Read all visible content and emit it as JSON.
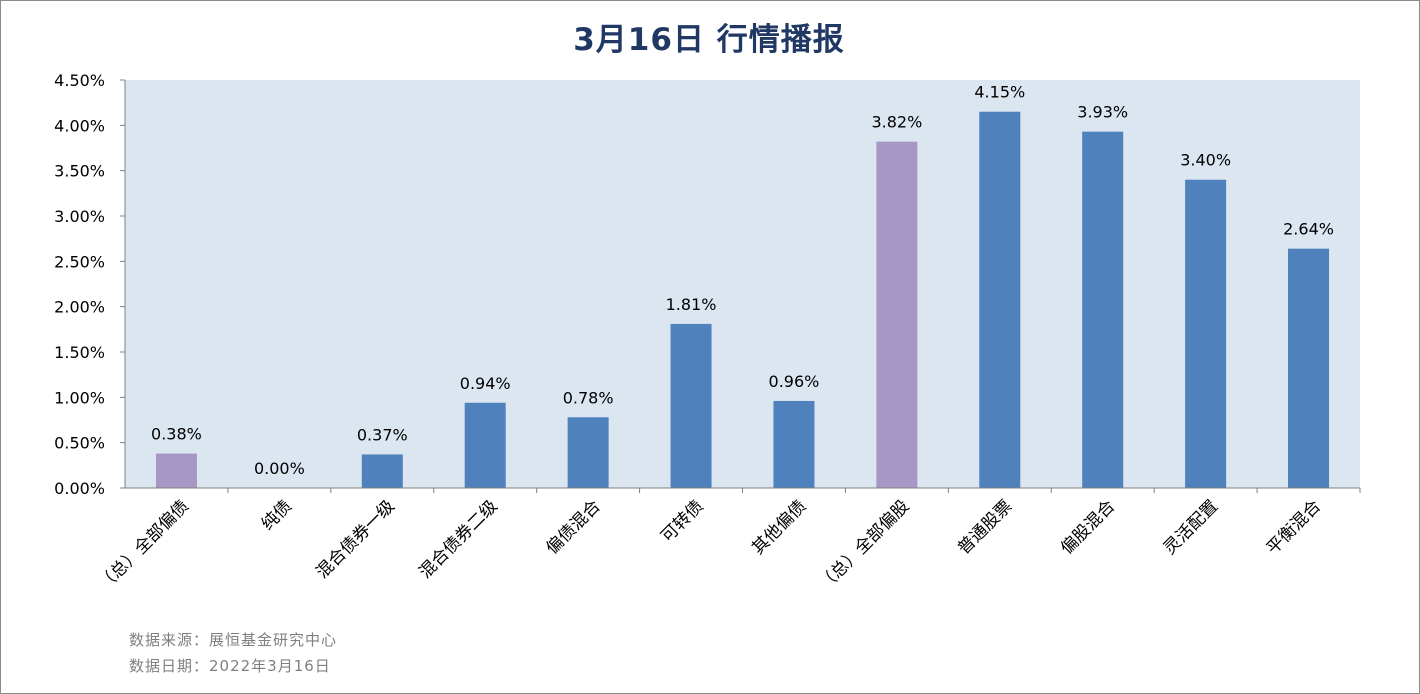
{
  "title": "3月16日  行情播报",
  "chart_data": {
    "type": "bar",
    "categories": [
      "（总）全部偏债",
      "纯债",
      "混合债券一级",
      "混合债券二级",
      "偏债混合",
      "可转债",
      "其他偏债",
      "（总）全部偏股",
      "普通股票",
      "偏股混合",
      "灵活配置",
      "平衡混合"
    ],
    "values": [
      0.38,
      0.0,
      0.37,
      0.94,
      0.78,
      1.81,
      0.96,
      3.82,
      4.15,
      3.93,
      3.4,
      2.64
    ],
    "data_labels": [
      "0.38%",
      "0.00%",
      "0.37%",
      "0.94%",
      "0.78%",
      "1.81%",
      "0.96%",
      "3.82%",
      "4.15%",
      "3.93%",
      "3.40%",
      "2.64%"
    ],
    "highlight": [
      true,
      false,
      false,
      false,
      false,
      false,
      false,
      true,
      false,
      false,
      false,
      false
    ],
    "y_ticks": [
      "0.00%",
      "0.50%",
      "1.00%",
      "1.50%",
      "2.00%",
      "2.50%",
      "3.00%",
      "3.50%",
      "4.00%",
      "4.50%"
    ],
    "ylim": [
      0,
      4.5
    ],
    "colors": {
      "bar": "#4f81bd",
      "highlight": "#a797c5",
      "plot_bg": "#dce6f1",
      "axis": "#808080",
      "text": "#000000"
    },
    "grid": false,
    "legend": "none"
  },
  "footer": {
    "source": "数据来源：展恒基金研究中心",
    "date": "数据日期：2022年3月16日"
  }
}
